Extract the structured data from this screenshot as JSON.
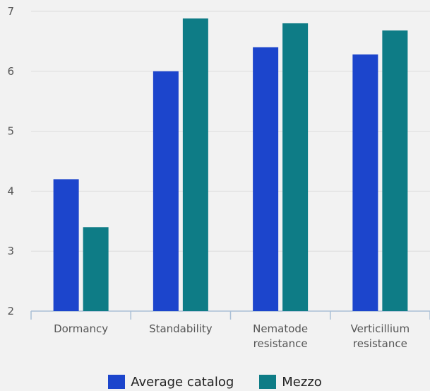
{
  "chart_data": {
    "type": "bar",
    "categories": [
      [
        "Dormancy"
      ],
      [
        "Standability"
      ],
      [
        "Nematode",
        "resistance"
      ],
      [
        "Verticillium",
        "resistance"
      ]
    ],
    "series": [
      {
        "name": "Average catalog",
        "color": "#1c45cc",
        "values": [
          4.2,
          6.0,
          6.4,
          6.28
        ]
      },
      {
        "name": "Mezzo",
        "color": "#0e7c86",
        "values": [
          3.4,
          6.88,
          6.8,
          6.68
        ]
      }
    ],
    "ylim": [
      2,
      7
    ],
    "yticks": [
      2,
      3,
      4,
      5,
      6,
      7
    ],
    "grid": true,
    "legend_position": "bottom-center",
    "title": "",
    "xlabel": "",
    "ylabel": ""
  }
}
